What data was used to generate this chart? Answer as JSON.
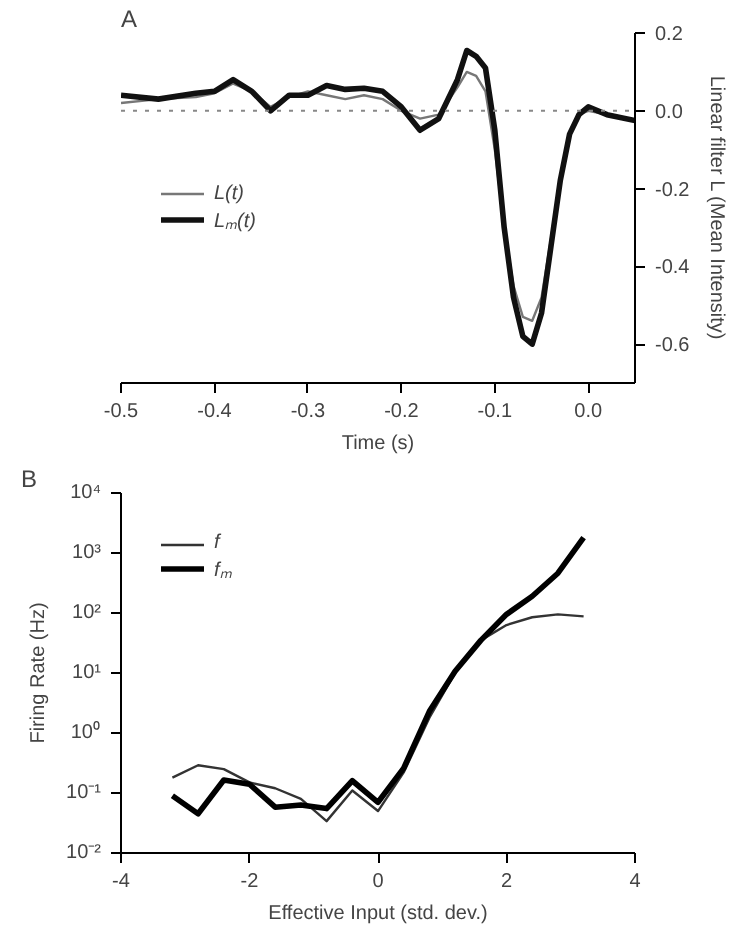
{
  "chart_data": [
    {
      "type": "line",
      "xlabel": "Time (s)",
      "ylabel": "Linear filter L (Mean Intensity)",
      "annotations": [
        "A"
      ],
      "xlim": [
        -0.5,
        0.05
      ],
      "xticks": [
        {
          "value": -0.5,
          "label": "-0.5"
        },
        {
          "value": -0.4,
          "label": "-0.4"
        },
        {
          "value": -0.3,
          "label": "-0.3"
        },
        {
          "value": -0.2,
          "label": "-0.2"
        },
        {
          "value": -0.1,
          "label": "-0.1"
        },
        {
          "value": 0,
          "label": "0.0"
        }
      ],
      "ylim": [
        -0.7,
        0.2
      ],
      "yticks": [
        {
          "value": -0.6,
          "label": "-0.6"
        },
        {
          "value": -0.4,
          "label": "-0.4"
        },
        {
          "value": -0.2,
          "label": "-0.2"
        },
        {
          "value": 0,
          "label": "0.0"
        },
        {
          "value": 0.2,
          "label": "0.2"
        }
      ],
      "x": [
        -0.5,
        -0.46,
        -0.42,
        -0.4,
        -0.38,
        -0.36,
        -0.34,
        -0.32,
        -0.3,
        -0.28,
        -0.26,
        -0.24,
        -0.22,
        -0.2,
        -0.18,
        -0.16,
        -0.14,
        -0.13,
        -0.12,
        -0.11,
        -0.1,
        -0.09,
        -0.08,
        -0.07,
        -0.06,
        -0.05,
        -0.04,
        -0.03,
        -0.02,
        -0.01,
        0,
        0.02,
        0.05
      ],
      "series": [
        {
          "name": "L(t)",
          "color": "#777777",
          "values": [
            0.02,
            0.03,
            0.035,
            0.045,
            0.07,
            0.05,
            0.01,
            0.035,
            0.05,
            0.04,
            0.03,
            0.04,
            0.03,
            0.0,
            -0.02,
            -0.01,
            0.06,
            0.1,
            0.09,
            0.05,
            -0.1,
            -0.3,
            -0.45,
            -0.53,
            -0.54,
            -0.48,
            -0.33,
            -0.17,
            -0.06,
            -0.01,
            0.0,
            -0.01,
            -0.025
          ]
        },
        {
          "name": "Lₘ(t)",
          "color": "#111111",
          "values": [
            0.04,
            0.03,
            0.045,
            0.05,
            0.08,
            0.05,
            0.0,
            0.04,
            0.04,
            0.065,
            0.055,
            0.058,
            0.05,
            0.01,
            -0.05,
            -0.02,
            0.08,
            0.155,
            0.14,
            0.11,
            -0.05,
            -0.3,
            -0.48,
            -0.58,
            -0.6,
            -0.52,
            -0.35,
            -0.18,
            -0.06,
            -0.01,
            0.01,
            -0.01,
            -0.025
          ]
        }
      ],
      "ref_lines": [
        {
          "axis": "y",
          "value": 0,
          "label": null,
          "color": "#888888",
          "line_style": "dotted"
        }
      ],
      "legend": "left",
      "grid": false,
      "marker": "none",
      "line_style": "solid"
    },
    {
      "type": "line",
      "xlabel": "Effective Input (std. dev.)",
      "ylabel": "Firing Rate (Hz)",
      "annotations": [
        "B"
      ],
      "log": "y",
      "xlim": [
        -4,
        4
      ],
      "xticks": [
        -4,
        -2,
        0,
        2,
        4
      ],
      "ylim": [
        0.01,
        10000
      ],
      "yticks": [
        {
          "value": 0.01,
          "label": "10⁻²"
        },
        {
          "value": 0.1,
          "label": "10⁻¹"
        },
        {
          "value": 1,
          "label": "10⁰"
        },
        {
          "value": 10,
          "label": "10¹"
        },
        {
          "value": 100,
          "label": "10²"
        },
        {
          "value": 1000,
          "label": "10³"
        },
        {
          "value": 10000,
          "label": "10⁴"
        }
      ],
      "x": [
        -3.2,
        -2.8,
        -2.4,
        -2.0,
        -1.6,
        -1.2,
        -0.8,
        -0.4,
        0.0,
        0.4,
        0.8,
        1.2,
        1.6,
        2.0,
        2.4,
        2.8,
        3.2
      ],
      "series": [
        {
          "name": "f",
          "color": "#333333",
          "values": [
            0.18,
            0.29,
            0.25,
            0.15,
            0.12,
            0.08,
            0.034,
            0.11,
            0.05,
            0.22,
            1.8,
            10,
            35,
            63,
            85,
            95,
            88
          ]
        },
        {
          "name": "fₘ",
          "color": "#000000",
          "values": [
            0.09,
            0.045,
            0.165,
            0.14,
            0.058,
            0.063,
            0.055,
            0.16,
            0.07,
            0.26,
            2.3,
            10.7,
            35,
            95,
            190,
            460,
            1800
          ]
        }
      ],
      "legend": "top left",
      "grid": false,
      "marker": "none",
      "line_style": "solid"
    }
  ]
}
